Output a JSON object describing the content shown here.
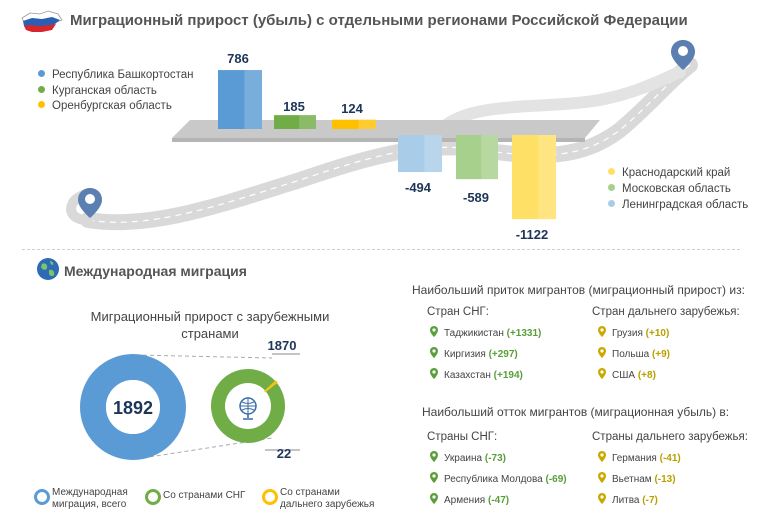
{
  "header": {
    "title": "Миграционный прирост (убыль) с отдельными регионами Российской Федерации",
    "flag_icon": "russia-map-flag-icon"
  },
  "colors": {
    "blue": "#5b9bd5",
    "light_blue": "#a9cce8",
    "green": "#70ad47",
    "light_green": "#a8d08d",
    "yellow": "#ffc000",
    "light_yellow": "#ffe066",
    "road": "#d9d9d9"
  },
  "chart_data": [
    {
      "type": "bar",
      "title": "",
      "series": [
        {
          "name": "Республика Башкортостан",
          "value": 786,
          "color": "#5b9bd5"
        },
        {
          "name": "Курганская область",
          "value": 185,
          "color": "#70ad47"
        },
        {
          "name": "Оренбургская область",
          "value": 124,
          "color": "#ffc000"
        },
        {
          "name": "Ленинградская область",
          "value": -494,
          "color": "#a9cce8"
        },
        {
          "name": "Московская область",
          "value": -589,
          "color": "#a8d08d"
        },
        {
          "name": "Краснодарский край",
          "value": -1122,
          "color": "#ffe066"
        }
      ],
      "legend_positive": [
        "Республика Башкортостан",
        "Курганская область",
        "Оренбургская область"
      ],
      "legend_negative": [
        "Краснодарский край",
        "Московская область",
        "Ленинградская область"
      ],
      "value_labels": [
        "786",
        "185",
        "124",
        "-494",
        "-589",
        "-1122"
      ]
    },
    {
      "type": "pie",
      "title": "Миграционный прирост с зарубежными странами",
      "total": 1892,
      "total_label": "1892",
      "slices": [
        {
          "name": "Со странами СНГ",
          "value": 1870,
          "label": "1870"
        },
        {
          "name": "Со странами дальнего зарубежья",
          "value": 22,
          "label": "22"
        }
      ]
    }
  ],
  "international": {
    "title": "Международная миграция",
    "globe_icon": "globe-icon",
    "donut_legend": [
      {
        "label": "Международная миграция, всего",
        "color": "#5b9bd5"
      },
      {
        "label": "Со странами СНГ",
        "color": "#70ad47"
      },
      {
        "label": "Со странами дальнего зарубежья",
        "color": "#ffc000"
      }
    ]
  },
  "inflow": {
    "title": "Наибольший приток мигрантов (миграционный прирост) из:",
    "cis_header": "Стран СНГ:",
    "far_header": "Стран дальнего зарубежья:",
    "cis": [
      {
        "name": "Таджикистан",
        "value": "(+1331)"
      },
      {
        "name": "Киргизия",
        "value": "(+297)"
      },
      {
        "name": "Казахстан",
        "value": "(+194)"
      }
    ],
    "far": [
      {
        "name": "Грузия",
        "value": "(+10)"
      },
      {
        "name": "Польша",
        "value": "(+9)"
      },
      {
        "name": "США",
        "value": "(+8)"
      }
    ]
  },
  "outflow": {
    "title": "Наибольший отток мигрантов (миграционная убыль) в:",
    "cis_header": "Страны СНГ:",
    "far_header": "Страны дальнего зарубежья:",
    "cis": [
      {
        "name": "Украина",
        "value": "(-73)"
      },
      {
        "name": "Республика Молдова",
        "value": "(-69)"
      },
      {
        "name": "Армения",
        "value": "(-47)"
      }
    ],
    "far": [
      {
        "name": "Германия",
        "value": "(-41)"
      },
      {
        "name": "Вьетнам",
        "value": "(-13)"
      },
      {
        "name": "Литва",
        "value": "(-7)"
      }
    ]
  }
}
